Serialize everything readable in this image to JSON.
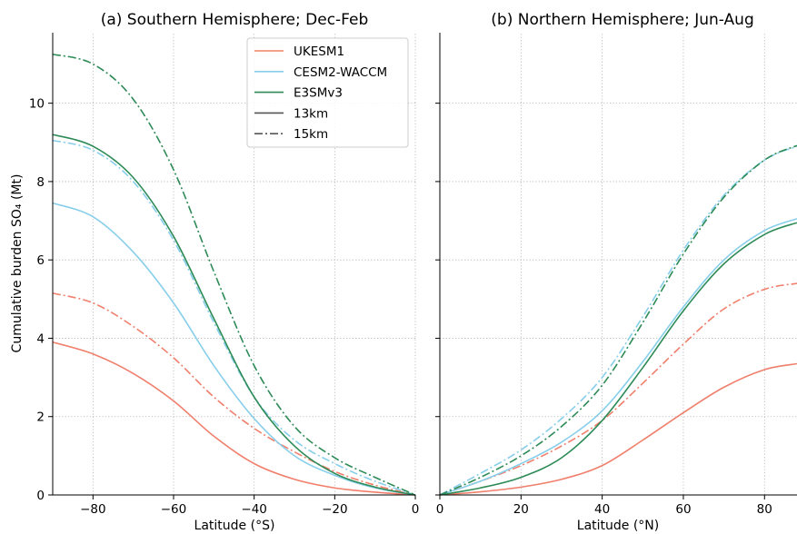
{
  "colors": {
    "UKESM1": "#f07f6c",
    "CESM2-WACCM": "#87ceeb",
    "E3SMv3": "#2e8b57",
    "legend_style": "#555555"
  },
  "legend": {
    "models": [
      "UKESM1",
      "CESM2-WACCM",
      "E3SMv3"
    ],
    "styles": [
      {
        "label": "13km",
        "dash": "solid"
      },
      {
        "label": "15km",
        "dash": "dashdot"
      }
    ]
  },
  "chart_data": [
    {
      "type": "line",
      "title": "(a) Southern Hemisphere; Dec-Feb",
      "xlabel": "Latitude (°S)",
      "ylabel": "Cumulative burden SO₄ (Mt)",
      "xlim": [
        -90,
        0
      ],
      "ylim": [
        0,
        11.8
      ],
      "xticks": [
        -80,
        -60,
        -40,
        -20,
        0
      ],
      "yticks": [
        0,
        2,
        4,
        6,
        8,
        10
      ],
      "grid": true,
      "legend_position": "top-right",
      "x": [
        -90,
        -80,
        -70,
        -60,
        -50,
        -40,
        -30,
        -20,
        -10,
        0
      ],
      "series": [
        {
          "name": "UKESM1",
          "style": "13km",
          "values": [
            3.9,
            3.6,
            3.1,
            2.4,
            1.5,
            0.8,
            0.4,
            0.18,
            0.07,
            0.0
          ]
        },
        {
          "name": "UKESM1",
          "style": "15km",
          "values": [
            5.15,
            4.9,
            4.3,
            3.5,
            2.5,
            1.7,
            1.1,
            0.6,
            0.25,
            0.0
          ]
        },
        {
          "name": "CESM2-WACCM",
          "style": "13km",
          "values": [
            7.45,
            7.1,
            6.2,
            4.9,
            3.3,
            1.95,
            1.0,
            0.5,
            0.18,
            0.0
          ]
        },
        {
          "name": "CESM2-WACCM",
          "style": "15km",
          "values": [
            9.05,
            8.8,
            8.0,
            6.5,
            4.4,
            2.5,
            1.4,
            0.8,
            0.35,
            0.0
          ]
        },
        {
          "name": "E3SMv3",
          "style": "13km",
          "values": [
            9.2,
            8.9,
            8.1,
            6.6,
            4.5,
            2.5,
            1.25,
            0.55,
            0.2,
            0.0
          ]
        },
        {
          "name": "E3SMv3",
          "style": "15km",
          "values": [
            11.25,
            11.0,
            10.1,
            8.3,
            5.7,
            3.3,
            1.75,
            0.95,
            0.45,
            0.0
          ]
        }
      ]
    },
    {
      "type": "line",
      "title": "(b) Northern Hemisphere; Jun-Aug",
      "xlabel": "Latitude (°N)",
      "ylabel": "",
      "xlim": [
        0,
        88
      ],
      "ylim": [
        0,
        11.8
      ],
      "xticks": [
        0,
        20,
        40,
        60,
        80
      ],
      "yticks": [
        0,
        2,
        4,
        6,
        8,
        10
      ],
      "grid": true,
      "x": [
        0,
        10,
        20,
        30,
        40,
        50,
        60,
        70,
        80,
        88
      ],
      "series": [
        {
          "name": "UKESM1",
          "style": "13km",
          "values": [
            0.0,
            0.08,
            0.2,
            0.4,
            0.75,
            1.4,
            2.1,
            2.75,
            3.2,
            3.35
          ]
        },
        {
          "name": "UKESM1",
          "style": "15km",
          "values": [
            0.0,
            0.35,
            0.75,
            1.25,
            1.9,
            2.85,
            3.85,
            4.75,
            5.25,
            5.4
          ]
        },
        {
          "name": "CESM2-WACCM",
          "style": "13km",
          "values": [
            0.0,
            0.35,
            0.8,
            1.35,
            2.15,
            3.4,
            4.8,
            6.0,
            6.75,
            7.05
          ]
        },
        {
          "name": "CESM2-WACCM",
          "style": "15km",
          "values": [
            0.0,
            0.55,
            1.15,
            1.95,
            3.0,
            4.55,
            6.25,
            7.65,
            8.55,
            8.9
          ]
        },
        {
          "name": "E3SMv3",
          "style": "13km",
          "values": [
            0.0,
            0.18,
            0.45,
            0.95,
            1.9,
            3.25,
            4.7,
            5.9,
            6.65,
            6.95
          ]
        },
        {
          "name": "E3SMv3",
          "style": "15km",
          "values": [
            0.0,
            0.45,
            1.0,
            1.75,
            2.8,
            4.4,
            6.15,
            7.6,
            8.55,
            8.92
          ]
        }
      ]
    }
  ]
}
